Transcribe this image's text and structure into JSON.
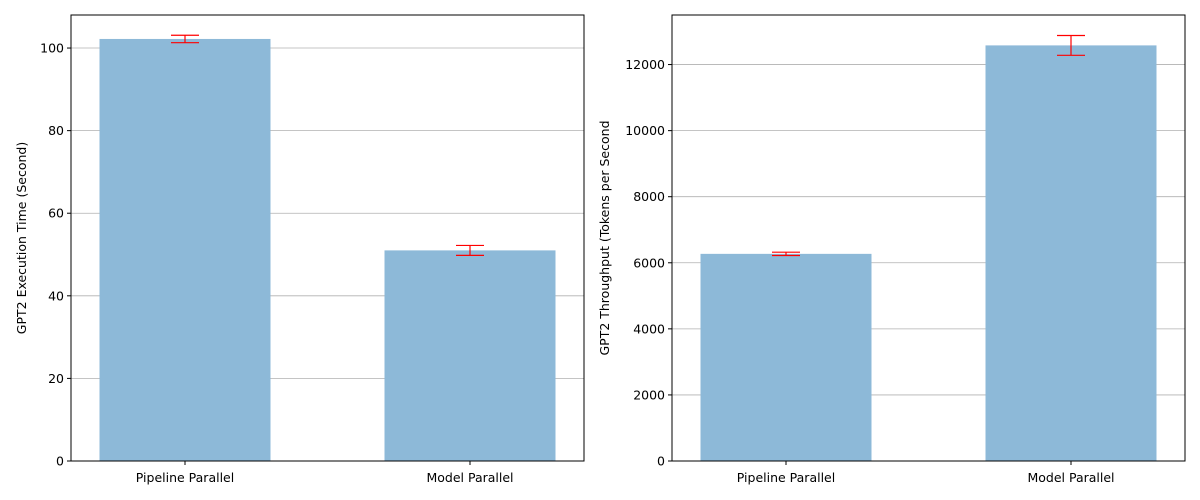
{
  "colors": {
    "bar": "#8db9d8",
    "error": "#ff0000",
    "grid": "#b0b0b0"
  },
  "chart_data": [
    {
      "type": "bar",
      "categories": [
        "Pipeline Parallel",
        "Model Parallel"
      ],
      "values": [
        102.2,
        51.0
      ],
      "errors": [
        0.9,
        1.2
      ],
      "title": "",
      "xlabel": "",
      "ylabel": "GPT2 Execution Time (Second)",
      "ylim": [
        0,
        108
      ],
      "yticks": [
        0,
        20,
        40,
        60,
        80,
        100
      ],
      "grid": "y"
    },
    {
      "type": "bar",
      "categories": [
        "Pipeline Parallel",
        "Model Parallel"
      ],
      "values": [
        6270,
        12580
      ],
      "errors": [
        50,
        300
      ],
      "title": "",
      "xlabel": "",
      "ylabel": "GPT2 Throughput (Tokens per Second",
      "ylim": [
        0,
        13500
      ],
      "yticks": [
        0,
        2000,
        4000,
        6000,
        8000,
        10000,
        12000
      ],
      "grid": "y"
    }
  ]
}
